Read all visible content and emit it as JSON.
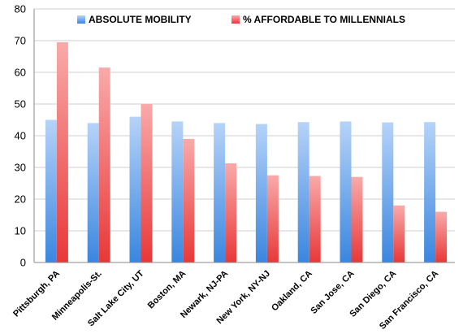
{
  "chart_data": {
    "type": "bar",
    "categories": [
      "Pittsburgh, PA",
      "Minneapolis-St.",
      "Salt Lake City, UT",
      "Boston, MA",
      "Newark, NJ-PA",
      "New York, NY-NJ",
      "Oakland, CA",
      "San Jose, CA",
      "San Diego, CA",
      "San Francisco, CA"
    ],
    "series": [
      {
        "name": "ABSOLUTE MOBILITY",
        "color": "#4a90e2",
        "values": [
          45.0,
          44.0,
          46.0,
          44.5,
          44.0,
          43.7,
          44.3,
          44.5,
          44.2,
          44.3
        ]
      },
      {
        "name": "% AFFORDABLE TO MILLENNIALS",
        "color": "#ee4040",
        "values": [
          69.5,
          61.5,
          50.0,
          39.0,
          31.3,
          27.5,
          27.3,
          27.0,
          18.0,
          16.0
        ]
      }
    ],
    "ylim": [
      0,
      80
    ],
    "yticks": [
      0,
      10,
      20,
      30,
      40,
      50,
      60,
      70,
      80
    ],
    "grid": true,
    "legend_position": "top"
  }
}
